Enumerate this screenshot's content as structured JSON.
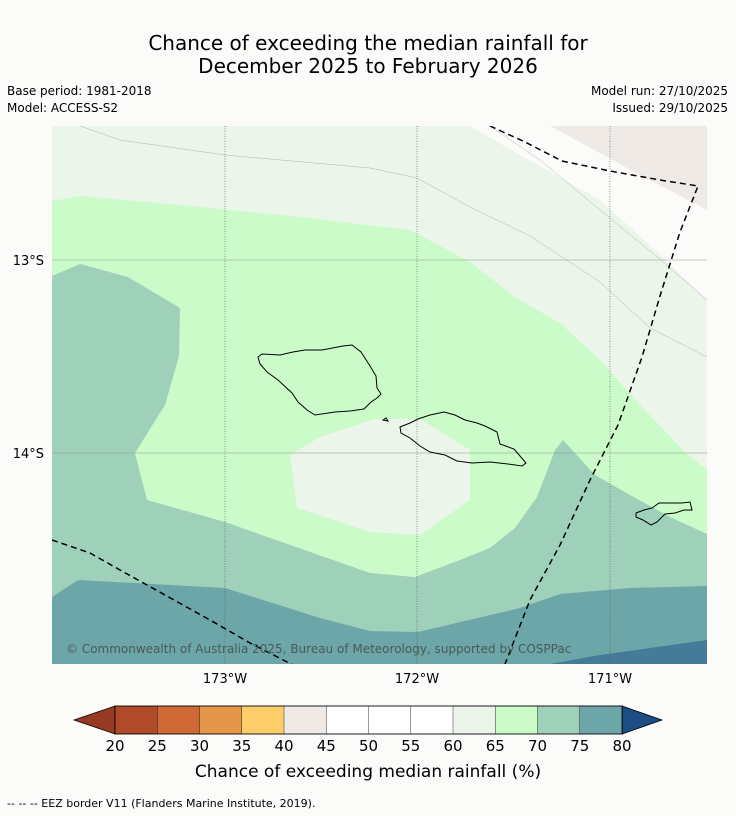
{
  "header": {
    "title_line1": "Chance of exceeding the median rainfall for",
    "title_line2": "December 2025 to February 2026",
    "base_period": "Base period: 1981-2018",
    "model": "Model: ACCESS-S2",
    "model_run": "Model run: 27/10/2025",
    "issued": "Issued: 29/10/2025"
  },
  "map": {
    "lat_labels": [
      "13°S",
      "14°S"
    ],
    "lon_labels": [
      "173°W",
      "172°W",
      "171°W"
    ],
    "copyright": "© Commonwealth of Australia 2025, Bureau of Meteorology, supported by COSPPac",
    "region_colors": {
      "r55_60": "#ebf5ea",
      "r60_65": "#ccfbca",
      "r65_70": "#9fd1ba",
      "r70_75": "#6ca6a8",
      "r75_80": "#457b99",
      "r40_45": "#f0eae7",
      "r50_55": "#fbfcfa"
    }
  },
  "colorbar": {
    "ticks": [
      "20",
      "25",
      "30",
      "35",
      "40",
      "45",
      "50",
      "55",
      "60",
      "65",
      "70",
      "75",
      "80"
    ],
    "colors": [
      "#b04a29",
      "#ce6935",
      "#e39549",
      "#fdcd6a",
      "#f0eae7",
      "#ffffff",
      "#ffffff",
      "#ffffff",
      "#ebf5ea",
      "#ccfbca",
      "#9fd1ba",
      "#6ca6a8",
      "#457b99"
    ],
    "under_color": "#973a24",
    "over_color": "#1d4d84",
    "label": "Chance of exceeding median rainfall (%)"
  },
  "footnote": "--  --  -- EEZ border V11 (Flanders Marine Institute, 2019)."
}
